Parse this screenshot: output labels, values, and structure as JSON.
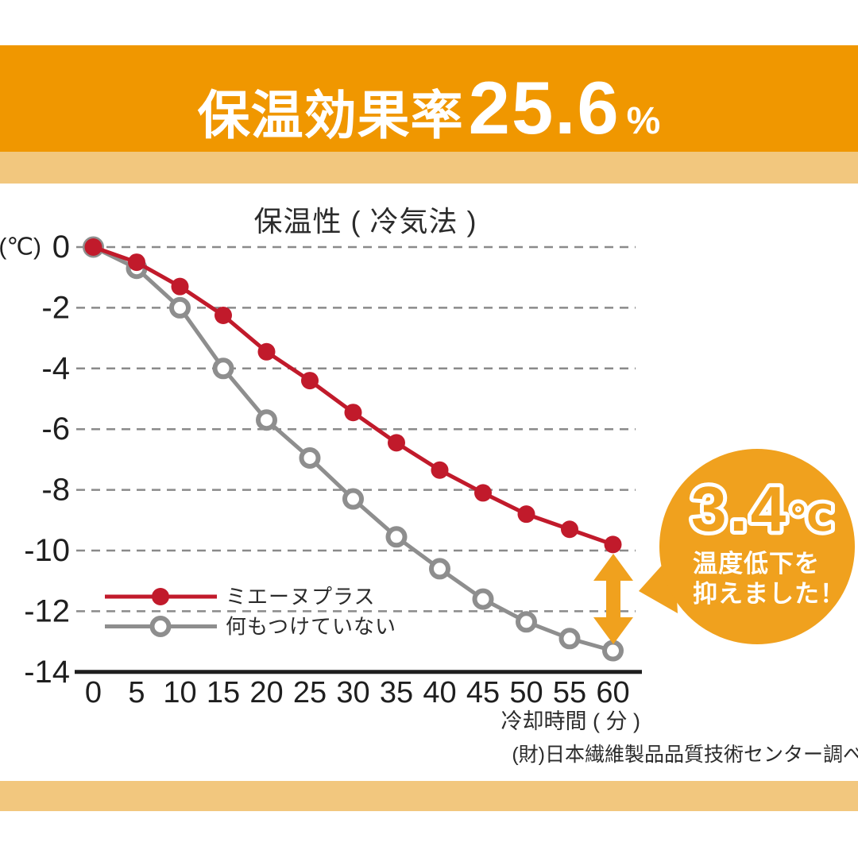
{
  "header": {
    "title_prefix": "保温効果率",
    "title_value": "25.6",
    "title_unit": "%"
  },
  "chart_data": {
    "type": "line",
    "title": "保温性 ( 冷気法 )",
    "y_axis_unit": "(℃)",
    "xlabel": "冷却時間 ( 分 )",
    "source": "(財)日本繊維製品品質技術センター調べ",
    "ylim": [
      -14,
      0
    ],
    "xlim": [
      0,
      60
    ],
    "grid": "dashed-horizontal",
    "legend_position": "inside-lower-left",
    "x": [
      0,
      5,
      10,
      15,
      20,
      25,
      30,
      35,
      40,
      45,
      50,
      55,
      60
    ],
    "x_ticks": [
      "0",
      "5",
      "10",
      "15",
      "20",
      "25",
      "30",
      "35",
      "40",
      "45",
      "50",
      "55",
      "60"
    ],
    "y_ticks": [
      {
        "label": "0",
        "value": 0
      },
      {
        "label": "-2",
        "value": -2
      },
      {
        "label": "-4",
        "value": -4
      },
      {
        "label": "-6",
        "value": -6
      },
      {
        "label": "-8",
        "value": -8
      },
      {
        "label": "-10",
        "value": -10
      },
      {
        "label": "-12",
        "value": -12
      },
      {
        "label": "-14",
        "value": -14
      }
    ],
    "series": [
      {
        "name": "ミエーヌプラス",
        "marker": "filled",
        "values": [
          0,
          -0.5,
          -1.3,
          -2.25,
          -3.45,
          -4.4,
          -5.45,
          -6.45,
          -7.35,
          -8.1,
          -8.8,
          -9.3,
          -9.8
        ]
      },
      {
        "name": "何もつけていない",
        "marker": "open",
        "values": [
          0,
          -0.7,
          -2.0,
          -4.0,
          -5.7,
          -6.95,
          -8.3,
          -9.55,
          -10.6,
          -11.6,
          -12.35,
          -12.9,
          -13.3
        ]
      }
    ],
    "annotation": {
      "big": "3.4",
      "big_unit": "℃",
      "line1": "温度低下を",
      "line2": "抑えました！"
    }
  },
  "colors": {
    "banner": "#F09700",
    "strip": "#F2C77E",
    "accent": "#F0A11E",
    "series1": "#C11A2B",
    "series2": "#8E8E8E",
    "grid": "#8A8A8A",
    "axis": "#1F1F1F",
    "text": "#2B2B2B"
  }
}
